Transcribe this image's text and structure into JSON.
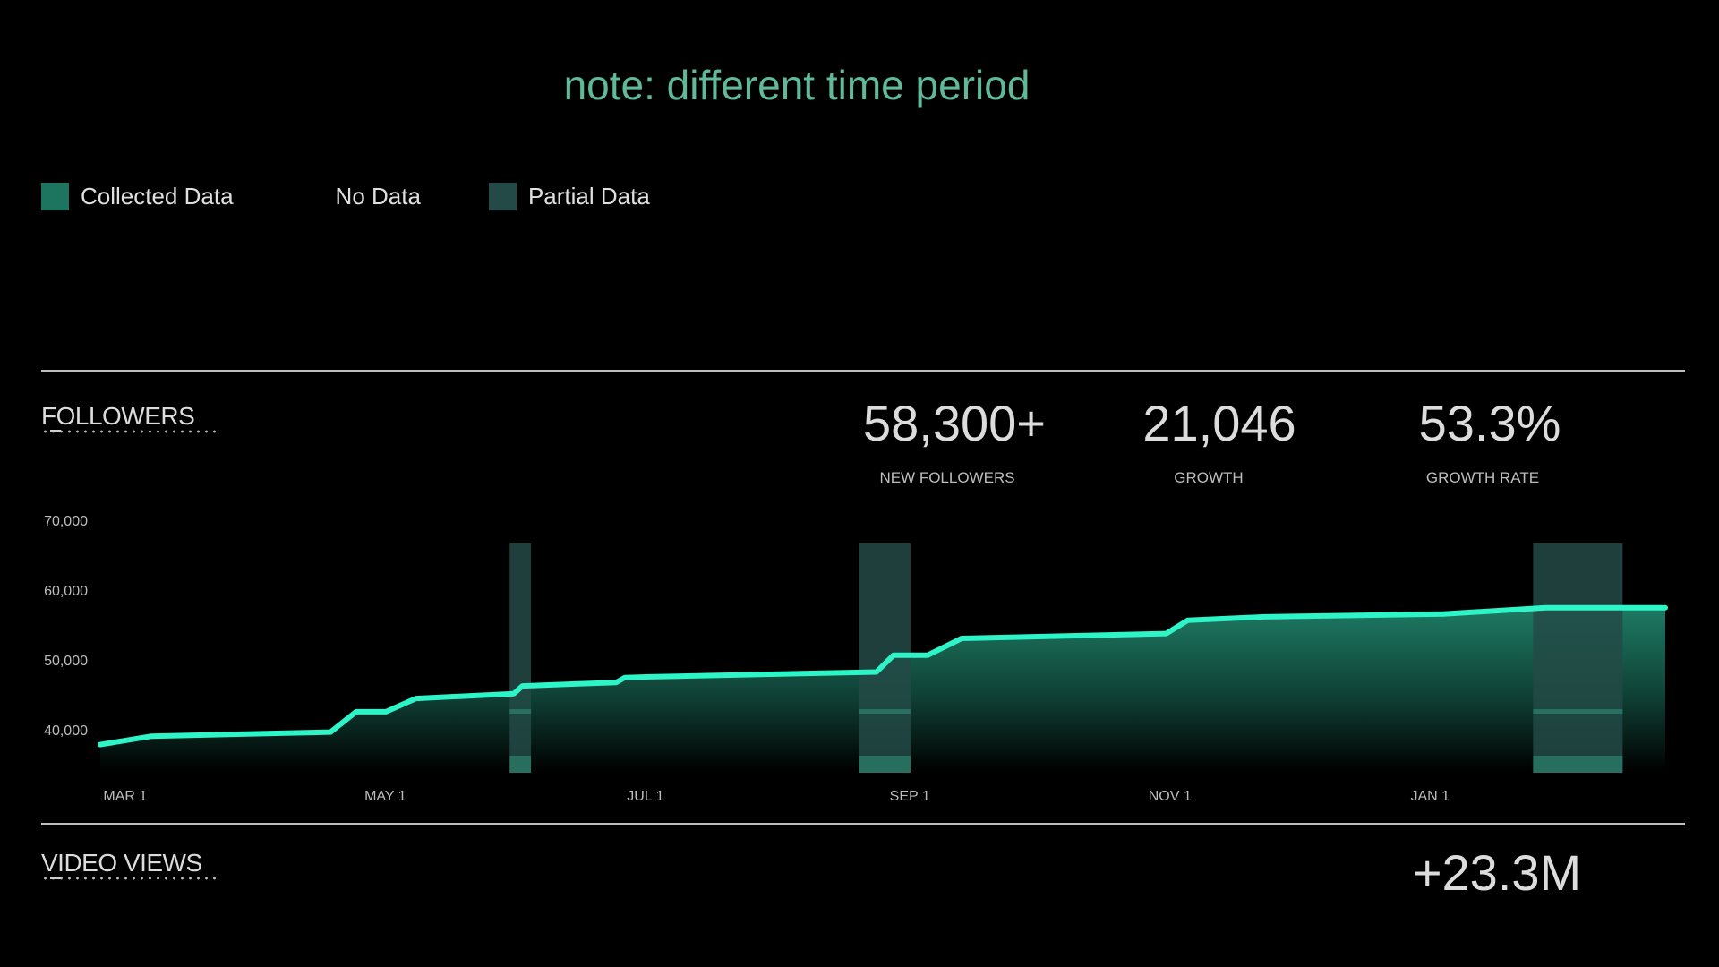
{
  "note": "note: different time period",
  "legend": [
    {
      "label": "Collected Data",
      "swatch": "#1d7560"
    },
    {
      "label": "No Data",
      "swatch": ""
    },
    {
      "label": "Partial Data",
      "swatch": "#234a47"
    }
  ],
  "followers": {
    "title": "FOLLOWERS",
    "stats": [
      {
        "value": "58,300+",
        "label": "NEW FOLLOWERS"
      },
      {
        "value": "21,046",
        "label": "GROWTH"
      },
      {
        "value": "53.3%",
        "label": "GROWTH RATE"
      }
    ]
  },
  "video_views": {
    "title": "VIDEO VIEWS",
    "value": "+23.3M"
  },
  "colors": {
    "line": "#2ef5c8",
    "fill_top": "#1d7a63",
    "partial": "#234a47",
    "note": "#5fb99a"
  },
  "chart_data": {
    "type": "area",
    "ylim": [
      35000,
      70000
    ],
    "yticks": [
      {
        "value": 70000,
        "label": "70,000"
      },
      {
        "value": 60000,
        "label": "60,000"
      },
      {
        "value": 50000,
        "label": "50,000"
      },
      {
        "value": 40000,
        "label": "40,000"
      }
    ],
    "xticks": [
      {
        "x": 0,
        "label": "MAR 1"
      },
      {
        "x": 61,
        "label": "MAY 1"
      },
      {
        "x": 122,
        "label": "JUL 1"
      },
      {
        "x": 184,
        "label": "SEP 1"
      },
      {
        "x": 245,
        "label": "NOV 1"
      },
      {
        "x": 306,
        "label": "JAN 1"
      }
    ],
    "xlim": [
      -5,
      362
    ],
    "series": [
      {
        "x": [
          -5,
          7,
          49,
          55,
          62,
          69,
          92,
          94,
          116,
          118,
          124,
          177,
          181,
          189,
          197,
          245,
          250,
          268,
          310,
          334,
          362
        ],
        "values": [
          38000,
          39200,
          39800,
          42700,
          42700,
          44600,
          45300,
          46400,
          46900,
          47600,
          47700,
          48400,
          50800,
          50800,
          53200,
          53900,
          55800,
          56300,
          56700,
          57600,
          57600
        ]
      }
    ],
    "partial_bands": [
      [
        91,
        96
      ],
      [
        173,
        185
      ],
      [
        331,
        352
      ]
    ]
  }
}
